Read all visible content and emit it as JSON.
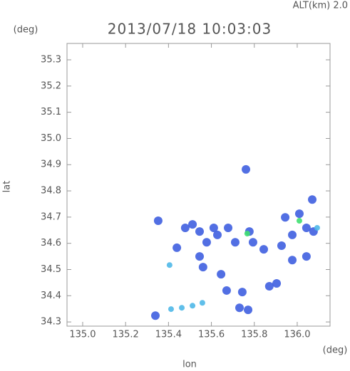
{
  "chart_data": {
    "type": "scatter",
    "altitude_label": "ALT(km) 2.0",
    "title": "2013/07/18 10:03:03",
    "y_unit": "(deg)",
    "x_unit": "(deg)",
    "x_label": "lon",
    "y_label": "lat",
    "xlim": [
      134.927,
      136.153
    ],
    "ylim": [
      34.284,
      35.3625
    ],
    "xticks": [
      {
        "value": 135.0,
        "label": "135.0"
      },
      135.2,
      135.4,
      135.6,
      135.8,
      {
        "value": 136.0,
        "label": "136.0"
      }
    ],
    "yticks": [
      34.3,
      34.4,
      34.5,
      34.6,
      34.7,
      34.8,
      34.9,
      {
        "value": 35.0,
        "label": "35.0"
      },
      35.1,
      35.2,
      35.3
    ],
    "series": [
      {
        "color": "#3f5fe0",
        "x": [
          135.944,
          136.043,
          136.076,
          135.977,
          136.07,
          136.01,
          135.777,
          135.794,
          135.844,
          135.678,
          135.711,
          135.512,
          135.545,
          135.611,
          135.578,
          135.545,
          135.561,
          135.628,
          135.671,
          135.744,
          135.771,
          135.731,
          135.87,
          135.904,
          135.977,
          136.043,
          135.927,
          135.439,
          135.645,
          135.761,
          135.478,
          135.352,
          135.339
        ],
        "values": [
          34.699,
          34.659,
          34.645,
          34.632,
          34.767,
          34.713,
          34.645,
          34.604,
          34.577,
          34.659,
          34.604,
          34.672,
          34.645,
          34.659,
          34.604,
          34.55,
          34.509,
          34.632,
          34.42,
          34.414,
          34.346,
          34.354,
          34.436,
          34.447,
          34.536,
          34.55,
          34.591,
          34.583,
          34.482,
          34.882,
          34.659,
          34.686,
          34.324
        ]
      },
      {
        "color": "#4fb8e8",
        "x": [
          135.405,
          135.412,
          135.462,
          135.512,
          135.558,
          136.093
        ],
        "values": [
          34.517,
          34.349,
          34.354,
          34.362,
          34.373,
          34.659
        ]
      },
      {
        "color": "#3fe070",
        "x": [
          135.767,
          136.01
        ],
        "values": [
          34.637,
          34.686
        ]
      }
    ]
  }
}
